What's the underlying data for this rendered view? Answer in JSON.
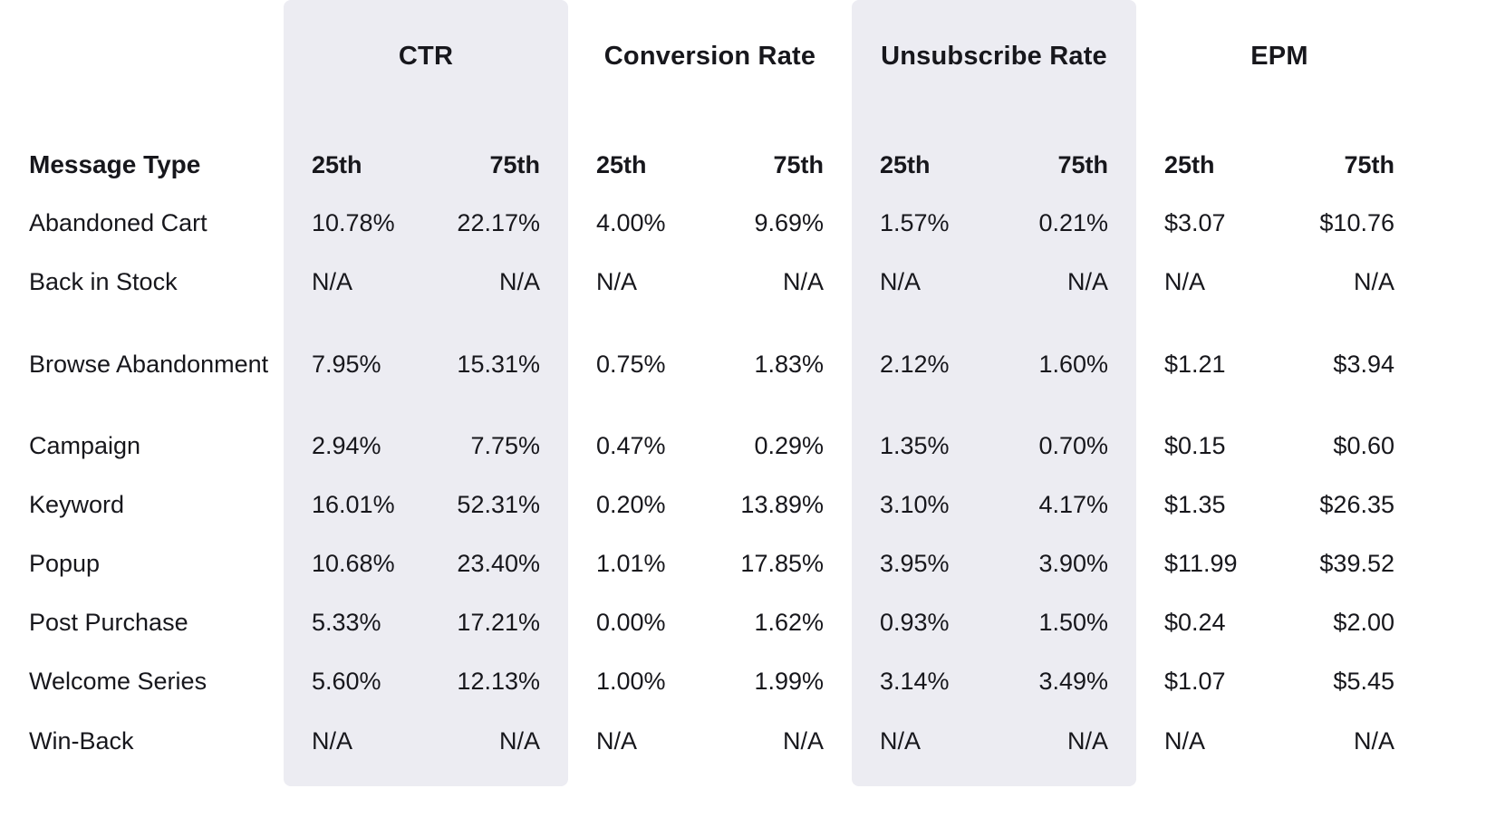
{
  "chart_data": {
    "type": "table",
    "row_header": "Message Type",
    "column_groups": [
      {
        "label": "CTR",
        "shaded": true,
        "sub_columns": [
          "25th",
          "75th"
        ]
      },
      {
        "label": "Conversion Rate",
        "shaded": false,
        "sub_columns": [
          "25th",
          "75th"
        ]
      },
      {
        "label": "Unsubscribe Rate",
        "shaded": true,
        "sub_columns": [
          "25th",
          "75th"
        ]
      },
      {
        "label": "EPM",
        "shaded": false,
        "sub_columns": [
          "25th",
          "75th"
        ]
      }
    ],
    "rows": [
      {
        "label": "Abandoned Cart",
        "values": [
          [
            "10.78%",
            "22.17%"
          ],
          [
            "4.00%",
            "9.69%"
          ],
          [
            "1.57%",
            "0.21%"
          ],
          [
            "$3.07",
            "$10.76"
          ]
        ]
      },
      {
        "label": "Back in Stock",
        "values": [
          [
            "N/A",
            "N/A"
          ],
          [
            "N/A",
            "N/A"
          ],
          [
            "N/A",
            "N/A"
          ],
          [
            "N/A",
            "N/A"
          ]
        ]
      },
      {
        "label": "Browse Abandonment",
        "values": [
          [
            "7.95%",
            "15.31%"
          ],
          [
            "0.75%",
            "1.83%"
          ],
          [
            "2.12%",
            "1.60%"
          ],
          [
            "$1.21",
            "$3.94"
          ]
        ]
      },
      {
        "label": "Campaign",
        "values": [
          [
            "2.94%",
            "7.75%"
          ],
          [
            "0.47%",
            "0.29%"
          ],
          [
            "1.35%",
            "0.70%"
          ],
          [
            "$0.15",
            "$0.60"
          ]
        ]
      },
      {
        "label": "Keyword",
        "values": [
          [
            "16.01%",
            "52.31%"
          ],
          [
            "0.20%",
            "13.89%"
          ],
          [
            "3.10%",
            "4.17%"
          ],
          [
            "$1.35",
            "$26.35"
          ]
        ]
      },
      {
        "label": "Popup",
        "values": [
          [
            "10.68%",
            "23.40%"
          ],
          [
            "1.01%",
            "17.85%"
          ],
          [
            "3.95%",
            "3.90%"
          ],
          [
            "$11.99",
            "$39.52"
          ]
        ]
      },
      {
        "label": "Post Purchase",
        "values": [
          [
            "5.33%",
            "17.21%"
          ],
          [
            "0.00%",
            "1.62%"
          ],
          [
            "0.93%",
            "1.50%"
          ],
          [
            "$0.24",
            "$2.00"
          ]
        ]
      },
      {
        "label": "Welcome Series",
        "values": [
          [
            "5.60%",
            "12.13%"
          ],
          [
            "1.00%",
            "1.99%"
          ],
          [
            "3.14%",
            "3.49%"
          ],
          [
            "$1.07",
            "$5.45"
          ]
        ]
      },
      {
        "label": "Win-Back",
        "values": [
          [
            "N/A",
            "N/A"
          ],
          [
            "N/A",
            "N/A"
          ],
          [
            "N/A",
            "N/A"
          ],
          [
            "N/A",
            "N/A"
          ]
        ]
      }
    ]
  },
  "colors": {
    "page_background": "#ffffff",
    "band_background": "#ececf2",
    "text": "#17171c"
  }
}
